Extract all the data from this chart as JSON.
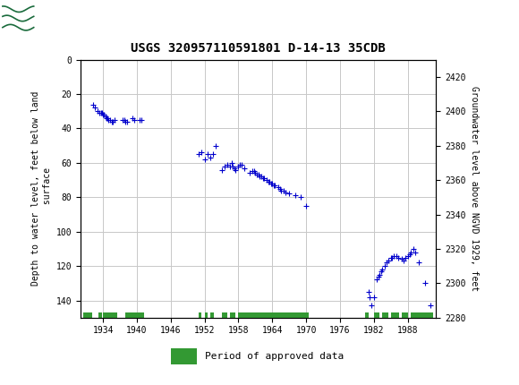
{
  "title": "USGS 320957110591801 D-14-13 35CDB",
  "ylabel_left": "Depth to water level, feet below land\n surface",
  "ylabel_right": "Groundwater level above NGVD 1929, feet",
  "ylim_left": [
    150,
    0
  ],
  "ylim_right": [
    2280,
    2430
  ],
  "xlim": [
    1930,
    1993
  ],
  "xticks": [
    1934,
    1940,
    1946,
    1952,
    1958,
    1964,
    1970,
    1976,
    1982,
    1988
  ],
  "yticks_left": [
    0,
    20,
    40,
    60,
    80,
    100,
    120,
    140
  ],
  "yticks_right": [
    2280,
    2300,
    2320,
    2340,
    2360,
    2380,
    2400,
    2420
  ],
  "header_color": "#1a6b3c",
  "dot_color": "#0000cc",
  "green_bar_color": "#339933",
  "background_color": "#ffffff",
  "plot_bg_color": "#ffffff",
  "grid_color": "#c8c8c8",
  "data_points": [
    [
      1932.3,
      26
    ],
    [
      1932.6,
      28
    ],
    [
      1933.0,
      30
    ],
    [
      1933.3,
      31
    ],
    [
      1933.6,
      31
    ],
    [
      1933.8,
      31
    ],
    [
      1934.0,
      32
    ],
    [
      1934.2,
      32
    ],
    [
      1934.4,
      33
    ],
    [
      1934.6,
      34
    ],
    [
      1934.8,
      34
    ],
    [
      1935.0,
      35
    ],
    [
      1935.2,
      35
    ],
    [
      1935.5,
      36
    ],
    [
      1935.8,
      36
    ],
    [
      1936.0,
      35
    ],
    [
      1937.5,
      35
    ],
    [
      1937.8,
      35
    ],
    [
      1938.0,
      36
    ],
    [
      1938.3,
      36
    ],
    [
      1939.2,
      34
    ],
    [
      1939.5,
      35
    ],
    [
      1940.5,
      35
    ],
    [
      1940.8,
      35
    ],
    [
      1951.0,
      55
    ],
    [
      1951.5,
      54
    ],
    [
      1952.0,
      58
    ],
    [
      1952.5,
      55
    ],
    [
      1953.0,
      57
    ],
    [
      1953.5,
      55
    ],
    [
      1954.0,
      50
    ],
    [
      1955.0,
      64
    ],
    [
      1955.5,
      62
    ],
    [
      1956.0,
      61
    ],
    [
      1956.5,
      62
    ],
    [
      1956.8,
      60
    ],
    [
      1957.0,
      62
    ],
    [
      1957.3,
      63
    ],
    [
      1957.5,
      64
    ],
    [
      1958.0,
      62
    ],
    [
      1958.3,
      61
    ],
    [
      1958.6,
      61
    ],
    [
      1959.0,
      63
    ],
    [
      1960.0,
      66
    ],
    [
      1960.5,
      65
    ],
    [
      1960.8,
      65
    ],
    [
      1961.0,
      66
    ],
    [
      1961.3,
      67
    ],
    [
      1961.5,
      67
    ],
    [
      1961.8,
      68
    ],
    [
      1962.0,
      68
    ],
    [
      1962.3,
      69
    ],
    [
      1962.5,
      69
    ],
    [
      1963.0,
      70
    ],
    [
      1963.3,
      71
    ],
    [
      1963.5,
      71
    ],
    [
      1963.8,
      72
    ],
    [
      1964.0,
      72
    ],
    [
      1964.3,
      73
    ],
    [
      1964.5,
      73
    ],
    [
      1965.0,
      74
    ],
    [
      1965.3,
      75
    ],
    [
      1965.5,
      76
    ],
    [
      1966.0,
      76
    ],
    [
      1966.3,
      77
    ],
    [
      1967.0,
      78
    ],
    [
      1968.0,
      79
    ],
    [
      1969.0,
      80
    ],
    [
      1970.0,
      85
    ],
    [
      1981.0,
      135
    ],
    [
      1981.3,
      138
    ],
    [
      1981.5,
      143
    ],
    [
      1982.0,
      138
    ],
    [
      1982.5,
      128
    ],
    [
      1982.8,
      126
    ],
    [
      1983.0,
      125
    ],
    [
      1983.3,
      123
    ],
    [
      1983.5,
      122
    ],
    [
      1984.0,
      120
    ],
    [
      1984.3,
      118
    ],
    [
      1984.5,
      117
    ],
    [
      1985.0,
      115
    ],
    [
      1985.2,
      115
    ],
    [
      1985.5,
      114
    ],
    [
      1986.0,
      114
    ],
    [
      1986.3,
      115
    ],
    [
      1987.0,
      116
    ],
    [
      1987.3,
      117
    ],
    [
      1987.6,
      115
    ],
    [
      1988.0,
      114
    ],
    [
      1988.3,
      113
    ],
    [
      1988.6,
      112
    ],
    [
      1989.0,
      110
    ],
    [
      1989.3,
      112
    ],
    [
      1990.0,
      118
    ],
    [
      1991.0,
      130
    ],
    [
      1992.0,
      143
    ]
  ],
  "green_bars": [
    [
      1930.5,
      1932.0
    ],
    [
      1933.2,
      1933.8
    ],
    [
      1934.0,
      1936.5
    ],
    [
      1938.0,
      1941.2
    ],
    [
      1951.0,
      1951.4
    ],
    [
      1952.0,
      1952.5
    ],
    [
      1953.0,
      1953.7
    ],
    [
      1955.0,
      1956.0
    ],
    [
      1956.5,
      1957.5
    ],
    [
      1958.0,
      1970.5
    ],
    [
      1980.5,
      1981.0
    ],
    [
      1982.0,
      1983.0
    ],
    [
      1983.5,
      1984.5
    ],
    [
      1985.0,
      1986.5
    ],
    [
      1987.0,
      1988.0
    ],
    [
      1988.5,
      1992.5
    ]
  ]
}
